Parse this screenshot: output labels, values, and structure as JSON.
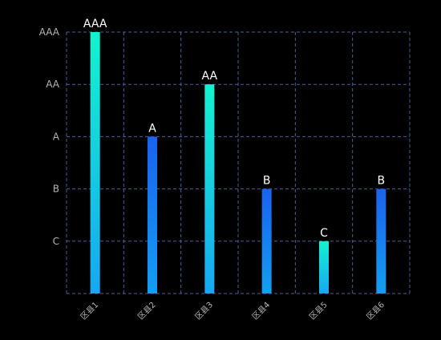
{
  "chart_data": {
    "type": "bar",
    "title": "",
    "xlabel": "",
    "ylabel": "",
    "categories": [
      "区县1",
      "区县2",
      "区县3",
      "区县4",
      "区县5",
      "区县6"
    ],
    "y_levels": [
      "",
      "C",
      "B",
      "A",
      "AA",
      "AAA"
    ],
    "y_ticks": [
      "C",
      "B",
      "A",
      "AA",
      "AAA"
    ],
    "values": [
      5,
      3,
      4,
      2,
      1,
      2
    ],
    "value_labels": [
      "AAA",
      "A",
      "AA",
      "B",
      "C",
      "B"
    ],
    "ylim": [
      0,
      5
    ],
    "grid": true,
    "grid_style": "dashed",
    "legend": "none",
    "colors": {
      "background": "#000000",
      "grid": "#4a5f9e",
      "axis": "#4a5f9e",
      "tick_label": "#b5b5b5",
      "data_label": "#ffffff",
      "bar_bright_top": "#14f2cf",
      "bar_bright_bottom": "#16a8f2",
      "bar_blue_top": "#1a62ee",
      "bar_blue_bottom": "#149ef0"
    },
    "bar_colors": [
      "bright",
      "blue",
      "bright",
      "blue",
      "bright",
      "blue"
    ]
  }
}
